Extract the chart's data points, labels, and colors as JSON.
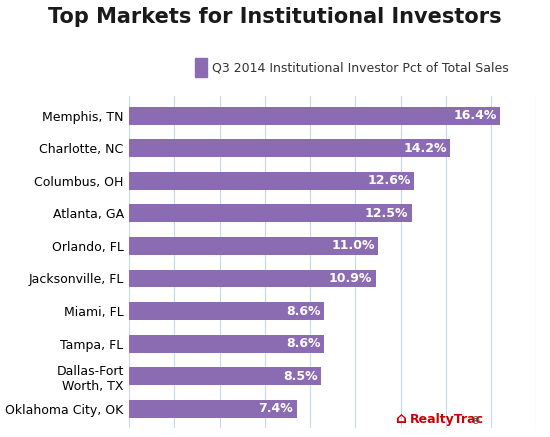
{
  "title": "Top Markets for Institutional Investors",
  "subtitle": "Q3 2014 Institutional Investor Pct of Total Sales",
  "categories": [
    "Oklahoma City, OK",
    "Dallas-Fort\nWorth, TX",
    "Tampa, FL",
    "Miami, FL",
    "Jacksonville, FL",
    "Orlando, FL",
    "Atlanta, GA",
    "Columbus, OH",
    "Charlotte, NC",
    "Memphis, TN"
  ],
  "values": [
    7.4,
    8.5,
    8.6,
    8.6,
    10.9,
    11.0,
    12.5,
    12.6,
    14.2,
    16.4
  ],
  "bar_color": "#8B6BB1",
  "label_color": "#ffffff",
  "background_color": "#ffffff",
  "grid_color": "#c8d8e8",
  "title_fontsize": 15,
  "subtitle_fontsize": 9,
  "label_fontsize": 9,
  "tick_fontsize": 9,
  "xlim": [
    0,
    18
  ],
  "bar_height": 0.55,
  "realtytrac_color": "#cc0000"
}
